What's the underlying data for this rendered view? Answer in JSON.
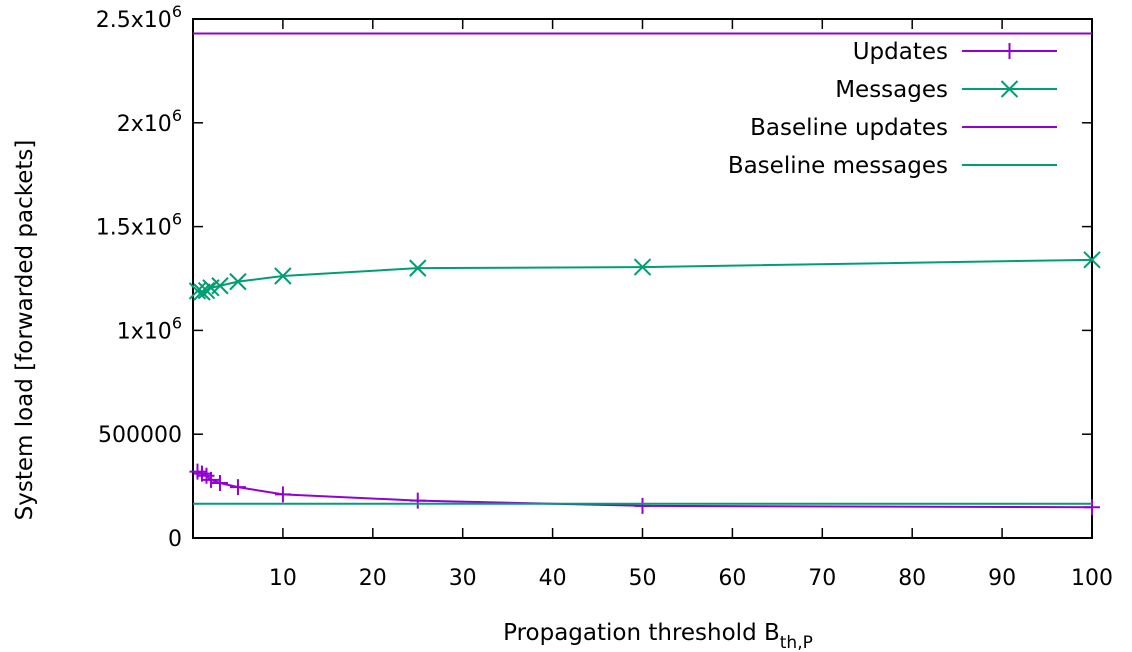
{
  "chart_data": {
    "type": "line",
    "xlabel": "Propagation threshold B",
    "xlabel_sub": "th,P",
    "ylabel": "System load [forwarded packets]",
    "xlim": [
      0,
      100
    ],
    "ylim": [
      0,
      2500000
    ],
    "x_ticks": [
      {
        "value": 10,
        "label": "10"
      },
      {
        "value": 20,
        "label": "20"
      },
      {
        "value": 30,
        "label": "30"
      },
      {
        "value": 40,
        "label": "40"
      },
      {
        "value": 50,
        "label": "50"
      },
      {
        "value": 60,
        "label": "60"
      },
      {
        "value": 70,
        "label": "70"
      },
      {
        "value": 80,
        "label": "80"
      },
      {
        "value": 90,
        "label": "90"
      },
      {
        "value": 100,
        "label": "100"
      }
    ],
    "y_ticks": [
      {
        "value": 0,
        "base": "0",
        "exp": ""
      },
      {
        "value": 500000,
        "base": "500000",
        "exp": ""
      },
      {
        "value": 1000000,
        "base": "1x10",
        "exp": "6"
      },
      {
        "value": 1500000,
        "base": "1.5x10",
        "exp": "6"
      },
      {
        "value": 2000000,
        "base": "2x10",
        "exp": "6"
      },
      {
        "value": 2500000,
        "base": "2.5x10",
        "exp": "6"
      }
    ],
    "grid": false,
    "legend_position": "top-right",
    "series": [
      {
        "name": "Updates",
        "color": "#9400d3",
        "marker": "plus",
        "x": [
          0.5,
          1,
          1.5,
          2,
          3,
          5,
          10,
          25,
          50,
          100
        ],
        "y": [
          320000,
          310000,
          300000,
          280000,
          265000,
          245000,
          210000,
          180000,
          155000,
          148000
        ]
      },
      {
        "name": "Messages",
        "color": "#009e73",
        "marker": "cross",
        "x": [
          0.5,
          1,
          1.5,
          2,
          3,
          5,
          10,
          25,
          50,
          100
        ],
        "y": [
          1190000,
          1185000,
          1192000,
          1205000,
          1215000,
          1235000,
          1262000,
          1300000,
          1305000,
          1340000
        ]
      },
      {
        "name": "Baseline updates",
        "color": "#9400d3",
        "marker": "none",
        "constant": 2430000
      },
      {
        "name": "Baseline messages",
        "color": "#009e73",
        "marker": "none",
        "constant": 165000
      }
    ]
  }
}
